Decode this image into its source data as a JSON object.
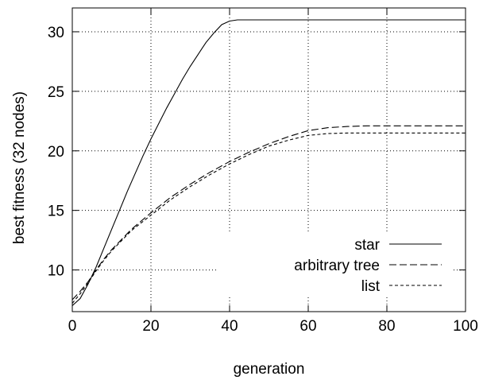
{
  "chart_data": {
    "type": "line",
    "title": "",
    "xlabel": "generation",
    "ylabel": "best fitness (32 nodes)",
    "xlim": [
      0,
      100
    ],
    "ylim": [
      6.5,
      32
    ],
    "xticks": [
      0,
      20,
      40,
      60,
      80,
      100
    ],
    "yticks": [
      10,
      15,
      20,
      25,
      30
    ],
    "grid": true,
    "grid_style": "dotted",
    "legend_position": "bottom-right",
    "series": [
      {
        "name": "star",
        "style": "solid",
        "x": [
          0,
          2,
          4,
          6,
          8,
          10,
          12,
          14,
          16,
          18,
          20,
          22,
          24,
          26,
          28,
          30,
          32,
          34,
          36,
          38,
          40,
          42,
          44,
          46,
          50,
          60,
          70,
          80,
          90,
          100
        ],
        "y": [
          7.0,
          7.6,
          8.8,
          10.2,
          11.8,
          13.4,
          15.0,
          16.6,
          18.1,
          19.6,
          21.0,
          22.3,
          23.6,
          24.8,
          26.0,
          27.1,
          28.1,
          29.1,
          29.9,
          30.6,
          30.9,
          31.0,
          31.0,
          31.0,
          31.0,
          31.0,
          31.0,
          31.0,
          31.0,
          31.0
        ]
      },
      {
        "name": "arbitrary tree",
        "style": "dashed",
        "x": [
          0,
          2,
          4,
          6,
          8,
          10,
          15,
          20,
          25,
          30,
          35,
          40,
          45,
          50,
          55,
          60,
          65,
          70,
          75,
          80,
          90,
          100
        ],
        "y": [
          7.5,
          8.2,
          9.0,
          10.0,
          10.9,
          11.7,
          13.4,
          14.8,
          16.1,
          17.2,
          18.2,
          19.1,
          19.9,
          20.6,
          21.2,
          21.7,
          21.95,
          22.05,
          22.1,
          22.1,
          22.1,
          22.1
        ]
      },
      {
        "name": "list",
        "style": "dotted-dash",
        "x": [
          0,
          2,
          4,
          6,
          8,
          10,
          15,
          20,
          25,
          30,
          35,
          40,
          45,
          50,
          55,
          60,
          65,
          70,
          75,
          80,
          90,
          100
        ],
        "y": [
          7.2,
          8.0,
          8.9,
          9.9,
          10.8,
          11.6,
          13.3,
          14.6,
          15.9,
          17.0,
          18.0,
          18.9,
          19.7,
          20.4,
          20.9,
          21.3,
          21.45,
          21.5,
          21.5,
          21.5,
          21.5,
          21.5
        ]
      }
    ]
  }
}
